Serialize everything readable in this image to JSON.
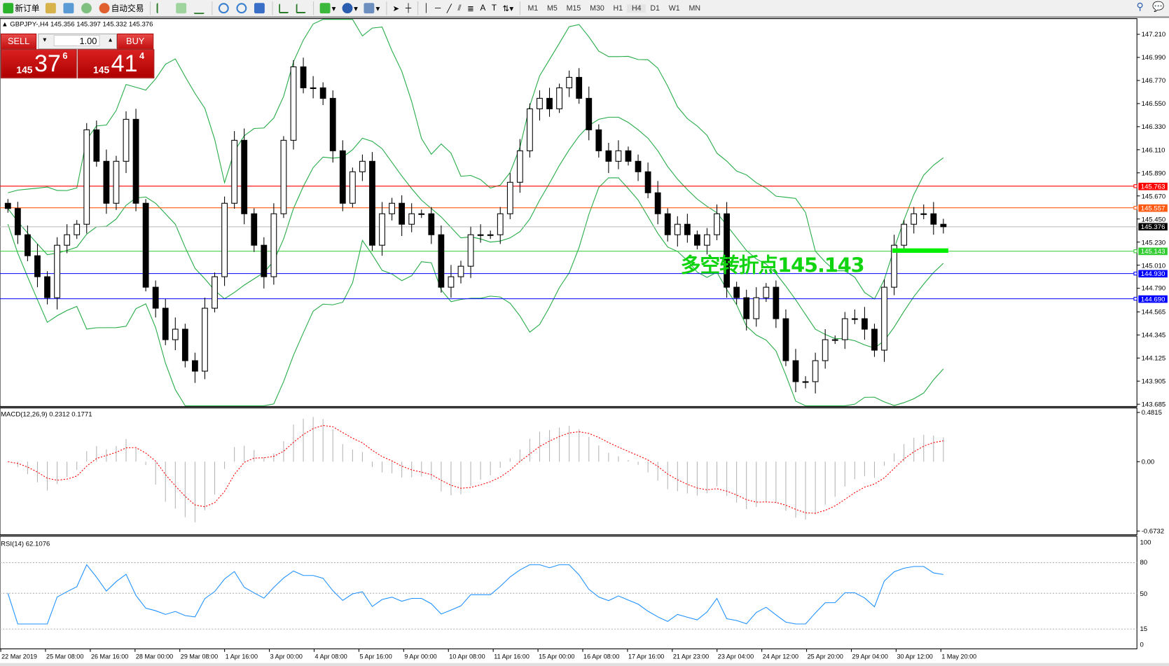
{
  "toolbar": {
    "new_order": "新订单",
    "auto_trading": "自动交易",
    "timeframes": [
      "M1",
      "M5",
      "M15",
      "M30",
      "H1",
      "H4",
      "D1",
      "W1",
      "MN"
    ],
    "active_timeframe": "H4",
    "icons": [
      "new-order-icon",
      "history-icon",
      "terminal-icon",
      "signal-icon",
      "auto-trading-icon",
      "bar-chart-icon",
      "candlestick-icon",
      "line-chart-icon",
      "zoom-in-icon",
      "zoom-out-icon",
      "tile-windows-icon",
      "autoscroll-icon",
      "chart-shift-icon",
      "indicators-icon",
      "periods-icon",
      "templates-icon",
      "cursor-icon",
      "crosshair-icon",
      "vertical-line-icon",
      "horizontal-line-icon",
      "trendline-icon",
      "equidistant-channel-icon",
      "fibonacci-icon",
      "text-icon",
      "text-label-icon",
      "arrows-icon",
      "search-icon",
      "chat-icon"
    ]
  },
  "chart": {
    "header": "GBPJPY-,H4  145.356 145.397 145.332 145.376",
    "symbol": "GBPJPY-,H4",
    "ohlc": "145.356 145.397 145.332 145.376",
    "annotation": "多空转折点145.143",
    "price_axis": [
      "147.210",
      "146.990",
      "146.770",
      "146.550",
      "146.330",
      "146.110",
      "145.890",
      "145.670",
      "145.450",
      "145.230",
      "145.010",
      "144.790",
      "144.565",
      "144.345",
      "144.125",
      "143.905",
      "143.685"
    ],
    "levels": [
      {
        "value": "145.763",
        "color": "#ff0000"
      },
      {
        "value": "145.557",
        "color": "#ff5a14"
      },
      {
        "value": "145.376",
        "color": "#000000",
        "current": true
      },
      {
        "value": "145.143",
        "color": "#33cc33"
      },
      {
        "value": "144.930",
        "color": "#0000ff"
      },
      {
        "value": "144.690",
        "color": "#0000ff"
      }
    ],
    "closes": [
      145.55,
      145.3,
      145.1,
      144.9,
      144.7,
      145.2,
      145.3,
      145.4,
      146.3,
      146.0,
      145.6,
      146.0,
      146.4,
      145.6,
      144.8,
      144.6,
      144.3,
      144.4,
      144.1,
      144.0,
      144.6,
      144.9,
      145.6,
      146.2,
      145.5,
      145.2,
      144.9,
      145.5,
      146.2,
      146.9,
      146.7,
      146.7,
      146.6,
      146.1,
      145.6,
      145.9,
      146.0,
      145.2,
      145.5,
      145.6,
      145.4,
      145.5,
      145.5,
      145.3,
      144.8,
      144.9,
      145.0,
      145.3,
      145.3,
      145.3,
      145.5,
      145.8,
      146.1,
      146.5,
      146.6,
      146.5,
      146.7,
      146.8,
      146.6,
      146.3,
      146.1,
      146.0,
      146.1,
      146.0,
      145.9,
      145.7,
      145.5,
      145.3,
      145.4,
      145.3,
      145.2,
      145.3,
      145.5,
      144.8,
      144.7,
      144.5,
      144.7,
      144.8,
      144.5,
      144.1,
      143.9,
      143.9,
      144.1,
      144.3,
      144.3,
      144.5,
      144.5,
      144.4,
      144.2,
      144.8,
      145.2,
      145.4,
      145.5,
      145.5,
      145.4,
      145.376
    ],
    "time_axis": [
      "22 Mar 2019",
      "25 Mar 08:00",
      "26 Mar 16:00",
      "28 Mar 00:00",
      "29 Mar 08:00",
      "1 Apr 16:00",
      "3 Apr 00:00",
      "4 Apr 08:00",
      "5 Apr 16:00",
      "9 Apr 00:00",
      "10 Apr 08:00",
      "11 Apr 16:00",
      "15 Apr 00:00",
      "16 Apr 08:00",
      "17 Apr 16:00",
      "21 Apr 23:00",
      "23 Apr 04:00",
      "24 Apr 12:00",
      "25 Apr 20:00",
      "29 Apr 04:00",
      "30 Apr 12:00",
      "1 May 20:00"
    ],
    "band_color": "#22aa44"
  },
  "trade_panel": {
    "sell_label": "SELL",
    "buy_label": "BUY",
    "lot": "1.00",
    "sell_price": {
      "big": "145",
      "main": "37",
      "pip": "6"
    },
    "buy_price": {
      "big": "145",
      "main": "41",
      "pip": "4"
    }
  },
  "macd": {
    "label": "MACD(12,26,9) 0.2312 0.1771",
    "axis": [
      "0.4815",
      "0.00",
      "-0.6732"
    ],
    "signal_color": "#ff0000",
    "hist_color": "#b4b4b4"
  },
  "rsi": {
    "label": "RSI(14) 62.1076",
    "axis": [
      "100",
      "80",
      "50",
      "15",
      "0"
    ],
    "line_color": "#1e90ff"
  }
}
